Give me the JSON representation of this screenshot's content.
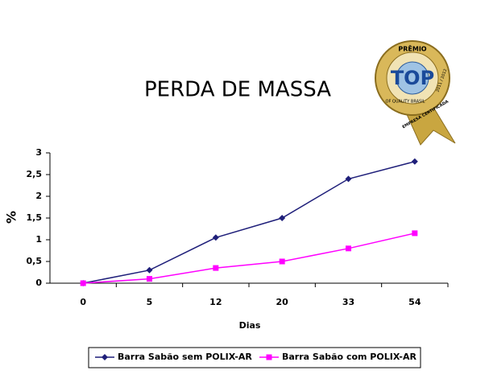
{
  "chart_data": {
    "type": "line",
    "title": "PERDA DE MASSA",
    "x_label": "Dias",
    "y_label": "%",
    "categories": [
      "0",
      "5",
      "12",
      "20",
      "33",
      "54"
    ],
    "series": [
      {
        "name": "Barra Sabão sem POLIX-AR",
        "color": "#1f1f7a",
        "marker": "diamond",
        "values": [
          0,
          0.3,
          1.05,
          1.5,
          2.4,
          2.8
        ]
      },
      {
        "name": "Barra Sabão com POLIX-AR",
        "color": "#ff00ff",
        "marker": "square",
        "values": [
          0,
          0.1,
          0.35,
          0.5,
          0.8,
          1.15
        ]
      }
    ],
    "ylim": [
      0,
      3
    ],
    "yticks": [
      0,
      {
        "value": 0.5,
        "label": "0,5"
      },
      1,
      {
        "value": 1.5,
        "label": "1,5"
      },
      2,
      {
        "value": 2.5,
        "label": "2,5"
      },
      3
    ],
    "grid": false,
    "legend": "bottom"
  },
  "badge": {
    "top": "PRÊMIO",
    "center": "TOP",
    "ring": "OF QUALITY BRASIL",
    "years": "2011 / 2012",
    "ribbon": "EMPRESA CERTIFICADA"
  }
}
